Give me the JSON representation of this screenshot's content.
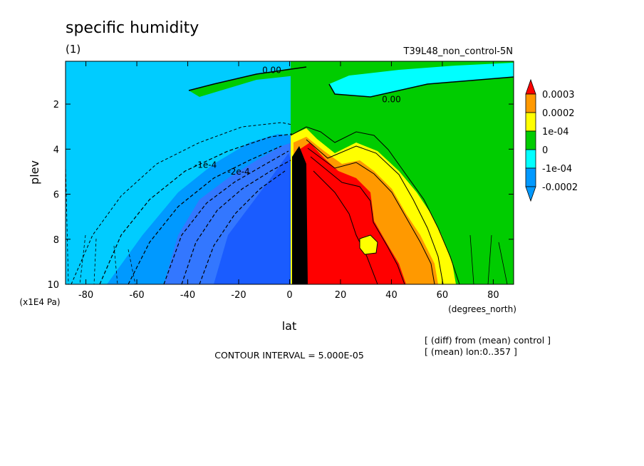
{
  "title": "specific humidity",
  "panel_label": "(1)",
  "run_label": "T39L48_non_control-5N",
  "contour_interval": "CONTOUR INTERVAL = 5.000E-05",
  "notes": [
    "[ (diff) from (mean) control ]",
    "[ (mean) lon:0..357 ]"
  ],
  "chart_data": {
    "type": "heatmap",
    "title": "specific humidity",
    "xlabel": "lat",
    "x_unit": "(degrees_north)",
    "ylabel": "plev",
    "y_unit": "(x1E4 Pa)",
    "xlim": [
      -88,
      88
    ],
    "ylim": [
      10,
      0.1
    ],
    "y_inverted": true,
    "x_ticks": [
      -80,
      -60,
      -40,
      -20,
      0,
      20,
      40,
      60,
      80
    ],
    "y_ticks": [
      2,
      4,
      6,
      8,
      10
    ],
    "contour_labels": [
      {
        "text": "0.00",
        "lat": -7,
        "plev": 0.5
      },
      {
        "text": "0.00",
        "lat": 40,
        "plev": 1.8
      },
      {
        "text": "-1e-4",
        "lat": -33,
        "plev": 4.7
      },
      {
        "text": "-2e-4",
        "lat": -20,
        "plev": 5.0
      }
    ],
    "colorbar": {
      "levels": [
        "0.0003",
        "0.0002",
        "1e-04",
        "0",
        "-1e-04",
        "-0.0002"
      ],
      "colors": [
        "#ff0000",
        "#ff9900",
        "#ffff00",
        "#00cc00",
        "#00ffff",
        "#0099ff",
        "#0066ff",
        "#3366ff"
      ]
    }
  }
}
